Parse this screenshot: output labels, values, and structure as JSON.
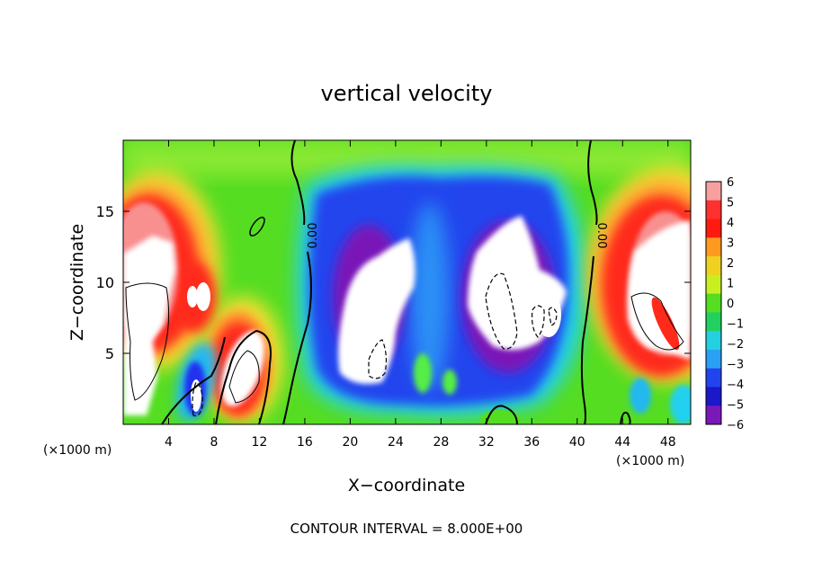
{
  "chart_data": {
    "type": "heatmap",
    "title": "vertical velocity",
    "xlabel": "X−coordinate",
    "ylabel": "Z−coordinate",
    "x_unit_label_left": "(×1000 m)",
    "x_unit_label_right": "(×1000 m)",
    "footer": "CONTOUR INTERVAL = 8.000E+00",
    "xlim": [
      0,
      50
    ],
    "ylim": [
      0,
      20
    ],
    "x_ticks": [
      4,
      8,
      12,
      16,
      20,
      24,
      28,
      32,
      36,
      40,
      44,
      48
    ],
    "y_ticks": [
      5,
      10,
      15
    ],
    "contour_label": "0.00",
    "colorbar": {
      "ticks": [
        "6",
        "5",
        "4",
        "3",
        "2",
        "1",
        "0",
        "−1",
        "−2",
        "−3",
        "−4",
        "−5",
        "−6"
      ],
      "range": [
        -6,
        6
      ]
    },
    "field_features": [
      {
        "name": "updraft-left",
        "x": [
          0,
          14
        ],
        "z": [
          0,
          16.5
        ],
        "sign": "positive"
      },
      {
        "name": "downdraft-center",
        "x": [
          15,
          40
        ],
        "z": [
          1.5,
          17.5
        ],
        "sign": "negative"
      },
      {
        "name": "updraft-right",
        "x": [
          41,
          50
        ],
        "z": [
          0,
          16.5
        ],
        "sign": "positive"
      }
    ]
  }
}
